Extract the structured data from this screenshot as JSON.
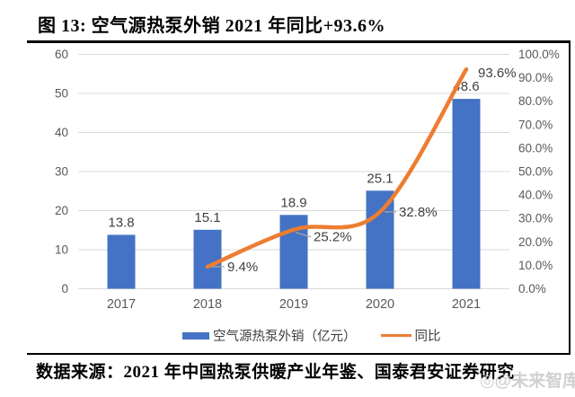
{
  "figure": {
    "title": "图 13: 空气源热泵外销 2021 年同比+93.6%",
    "source": "数据来源：2021 年中国热泵供暖产业年鉴、国泰君安证券研究",
    "watermark_icon": "◎",
    "watermark": "@未来智库"
  },
  "chart_data": {
    "type": "bar",
    "subtype": "bar+line combo, line on secondary percent axis",
    "categories": [
      "2017",
      "2018",
      "2019",
      "2020",
      "2021"
    ],
    "series": [
      {
        "name": "空气源热泵外销（亿元）",
        "type": "bar",
        "axis": "left",
        "values": [
          13.8,
          15.1,
          18.9,
          25.1,
          48.6
        ],
        "labels": [
          "13.8",
          "15.1",
          "18.9",
          "25.1",
          "48.6"
        ]
      },
      {
        "name": "同比",
        "type": "line",
        "axis": "right",
        "values": [
          null,
          9.4,
          25.2,
          32.8,
          93.6
        ],
        "labels": [
          null,
          "9.4%",
          "25.2%",
          "32.8%",
          "93.6%"
        ]
      }
    ],
    "left_axis": {
      "min": 0,
      "max": 60,
      "step": 10,
      "ticks": [
        "0",
        "10",
        "20",
        "30",
        "40",
        "50",
        "60"
      ]
    },
    "right_axis": {
      "min": 0,
      "max": 100,
      "step": 10,
      "ticks": [
        "0.0%",
        "10.0%",
        "20.0%",
        "30.0%",
        "40.0%",
        "50.0%",
        "60.0%",
        "70.0%",
        "80.0%",
        "90.0%",
        "100.0%"
      ]
    },
    "grid": true,
    "legend_position": "bottom",
    "colors": {
      "bar": "#4472C4",
      "line": "#ED7D31",
      "grid": "#D9D9D9",
      "axis_text": "#595959",
      "data_label": "#404040",
      "leader": "#A6A6A6"
    }
  }
}
